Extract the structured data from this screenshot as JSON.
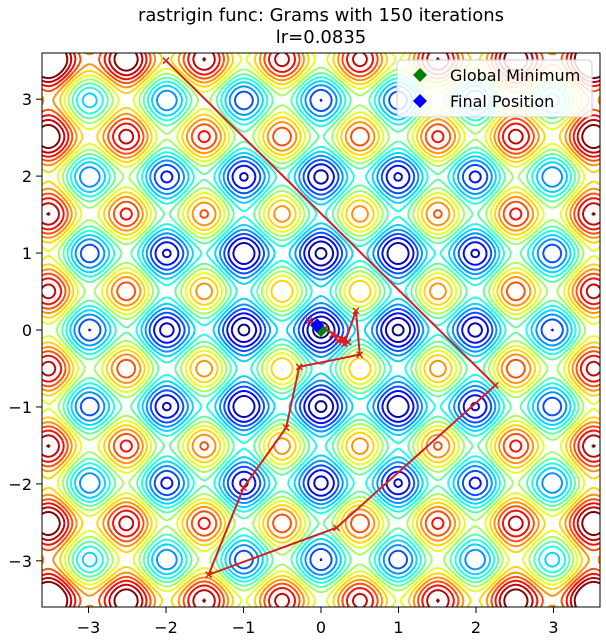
{
  "chart_data": {
    "type": "line",
    "title": "rastrigin func: Grams with 150 iterations",
    "subtitle": "lr=0.0835",
    "xlabel": "",
    "ylabel": "",
    "xlim": [
      -3.6,
      3.6
    ],
    "ylim": [
      -3.6,
      3.6
    ],
    "x_ticks": [
      -3,
      -2,
      -1,
      0,
      1,
      2,
      3
    ],
    "y_ticks": [
      -3,
      -2,
      -1,
      0,
      1,
      2,
      3
    ],
    "background": "contour of rastrigin function",
    "legend_position": "top-right",
    "series": [
      {
        "name": "",
        "color": "#d62020",
        "x": [
          -2.0,
          2.25,
          0.2,
          -1.45,
          -1.0,
          -0.45,
          -0.28,
          0.5,
          0.45,
          0.3,
          0.28,
          0.22,
          0.15,
          0.3,
          0.35,
          0.05,
          -0.15,
          -0.05
        ],
        "y": [
          3.5,
          -0.72,
          -2.57,
          -3.18,
          -2.05,
          -1.27,
          -0.48,
          -0.32,
          0.25,
          -0.18,
          -0.12,
          -0.14,
          -0.06,
          -0.12,
          -0.16,
          0.02,
          0.12,
          0.06
        ]
      }
    ],
    "markers": [
      {
        "name": "Global Minimum",
        "color": "#008000",
        "x": 0.0,
        "y": 0.0
      },
      {
        "name": "Final Position",
        "color": "#0000ff",
        "x": -0.05,
        "y": 0.06
      }
    ]
  }
}
